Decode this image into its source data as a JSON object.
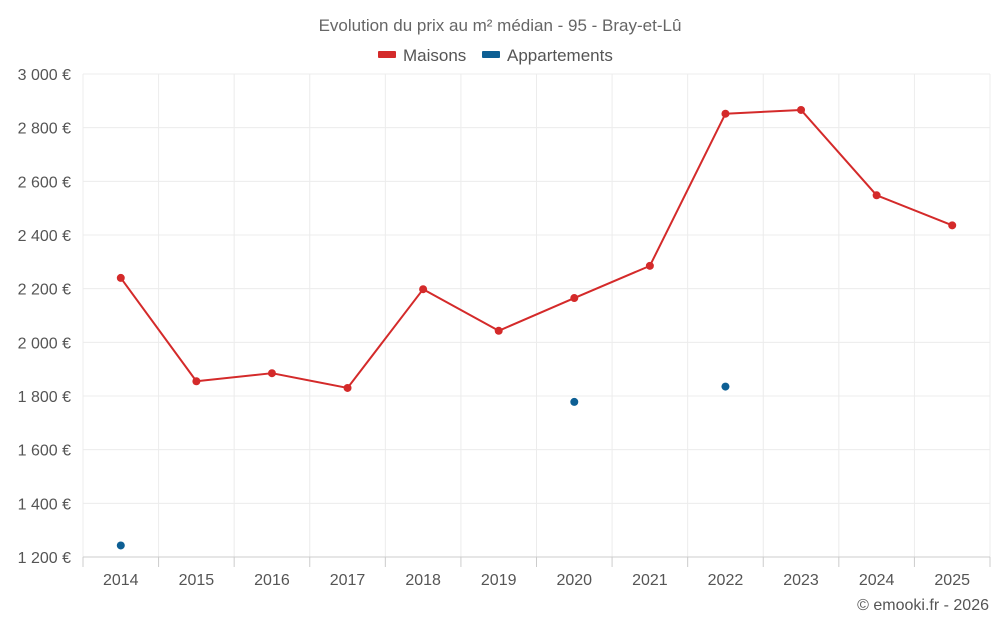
{
  "chart_data": {
    "type": "line",
    "title": "Evolution du prix au m² médian - 95 - Bray-et-Lû",
    "x": [
      "2014",
      "2015",
      "2016",
      "2017",
      "2018",
      "2019",
      "2020",
      "2021",
      "2022",
      "2023",
      "2024",
      "2025"
    ],
    "series": [
      {
        "name": "Maisons",
        "color": "#d42a2a",
        "style": "line",
        "values": [
          2240,
          1855,
          1885,
          1830,
          2198,
          2043,
          2165,
          2285,
          2852,
          2866,
          2548,
          2436
        ]
      },
      {
        "name": "Appartements",
        "color": "#0d5f94",
        "style": "points",
        "values": [
          1243,
          null,
          null,
          null,
          null,
          null,
          1778,
          null,
          1835,
          null,
          null,
          null
        ]
      }
    ],
    "ylim": [
      1200,
      3000
    ],
    "yticks": [
      1200,
      1400,
      1600,
      1800,
      2000,
      2200,
      2400,
      2600,
      2800,
      3000
    ],
    "ytick_labels": [
      "1 200 €",
      "1 400 €",
      "1 600 €",
      "1 800 €",
      "2 000 €",
      "2 200 €",
      "2 400 €",
      "2 600 €",
      "2 800 €",
      "3 000 €"
    ],
    "xlabel": "",
    "ylabel": "",
    "grid": true,
    "legend_position": "top-center",
    "credit": "© emooki.fr - 2026"
  }
}
